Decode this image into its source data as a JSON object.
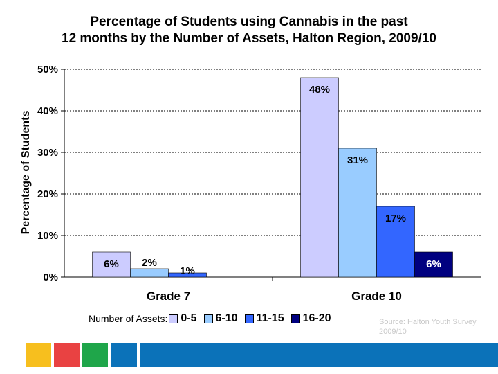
{
  "chart_data": {
    "type": "bar",
    "title_line1": "Percentage of Students using Cannabis in the past",
    "title_line2": "12 months by the Number of Assets, Halton Region, 2009/10",
    "ylabel": "Percentage of Students",
    "xlabel": "",
    "categories": [
      "Grade 7",
      "Grade 10"
    ],
    "series": [
      {
        "name": "0-5",
        "color": "#ccccff",
        "values": [
          6,
          48
        ],
        "labels": [
          "6%",
          "48%"
        ]
      },
      {
        "name": "6-10",
        "color": "#99ccff",
        "values": [
          2,
          31
        ],
        "labels": [
          "2%",
          "31%"
        ]
      },
      {
        "name": "11-15",
        "color": "#3366ff",
        "values": [
          1,
          17
        ],
        "labels": [
          "1%",
          "17%"
        ]
      },
      {
        "name": "16-20",
        "color": "#000080",
        "values": [
          0,
          6
        ],
        "labels": [
          "",
          "6%"
        ]
      }
    ],
    "ylim": [
      0,
      50
    ],
    "yticks": [
      "0%",
      "10%",
      "20%",
      "30%",
      "40%",
      "50%"
    ],
    "grid": true,
    "legend_title": "Number of Assets:",
    "legend_position": "bottom"
  },
  "source": {
    "label": "Source:",
    "text": "Halton Youth Survey 2009/10"
  },
  "footer_colors": [
    "#f7bf1e",
    "#e94242",
    "#1fa64a",
    "#0b72b9",
    "#0b72b9"
  ]
}
